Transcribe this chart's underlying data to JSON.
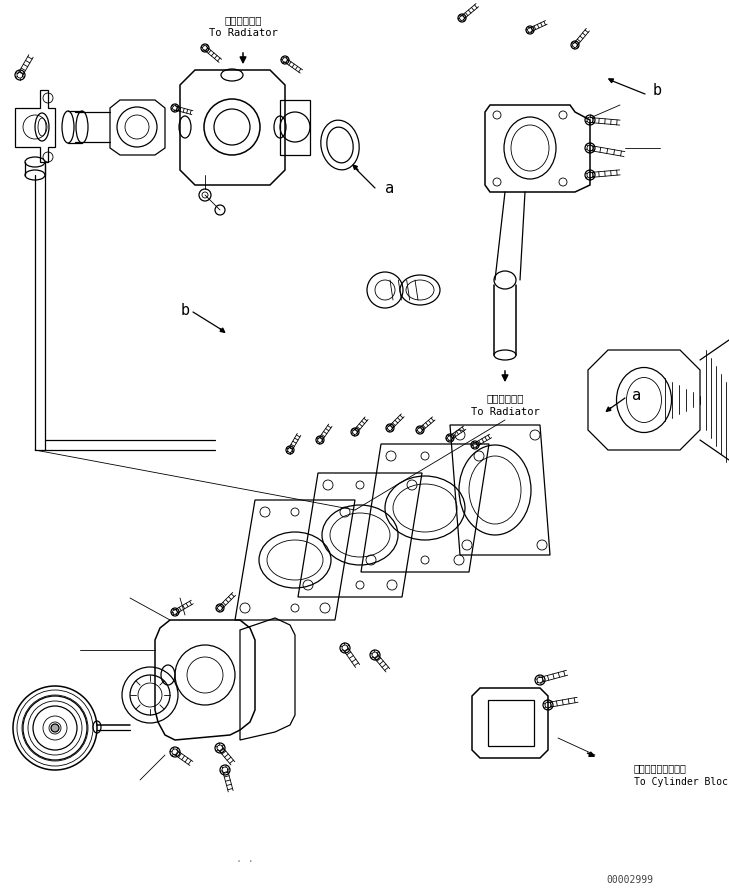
{
  "bg_color": "#ffffff",
  "line_color": "#000000",
  "fig_width": 7.29,
  "fig_height": 8.88,
  "dpi": 100,
  "watermark": "00002999",
  "text_radiator_jp": "ラジエータへ",
  "text_radiator_en": "To Radiator",
  "text_cyl_jp": "シリンダブロックへ",
  "text_cyl_en": "To Cylinder Block",
  "label_a": "a",
  "label_b": "b"
}
